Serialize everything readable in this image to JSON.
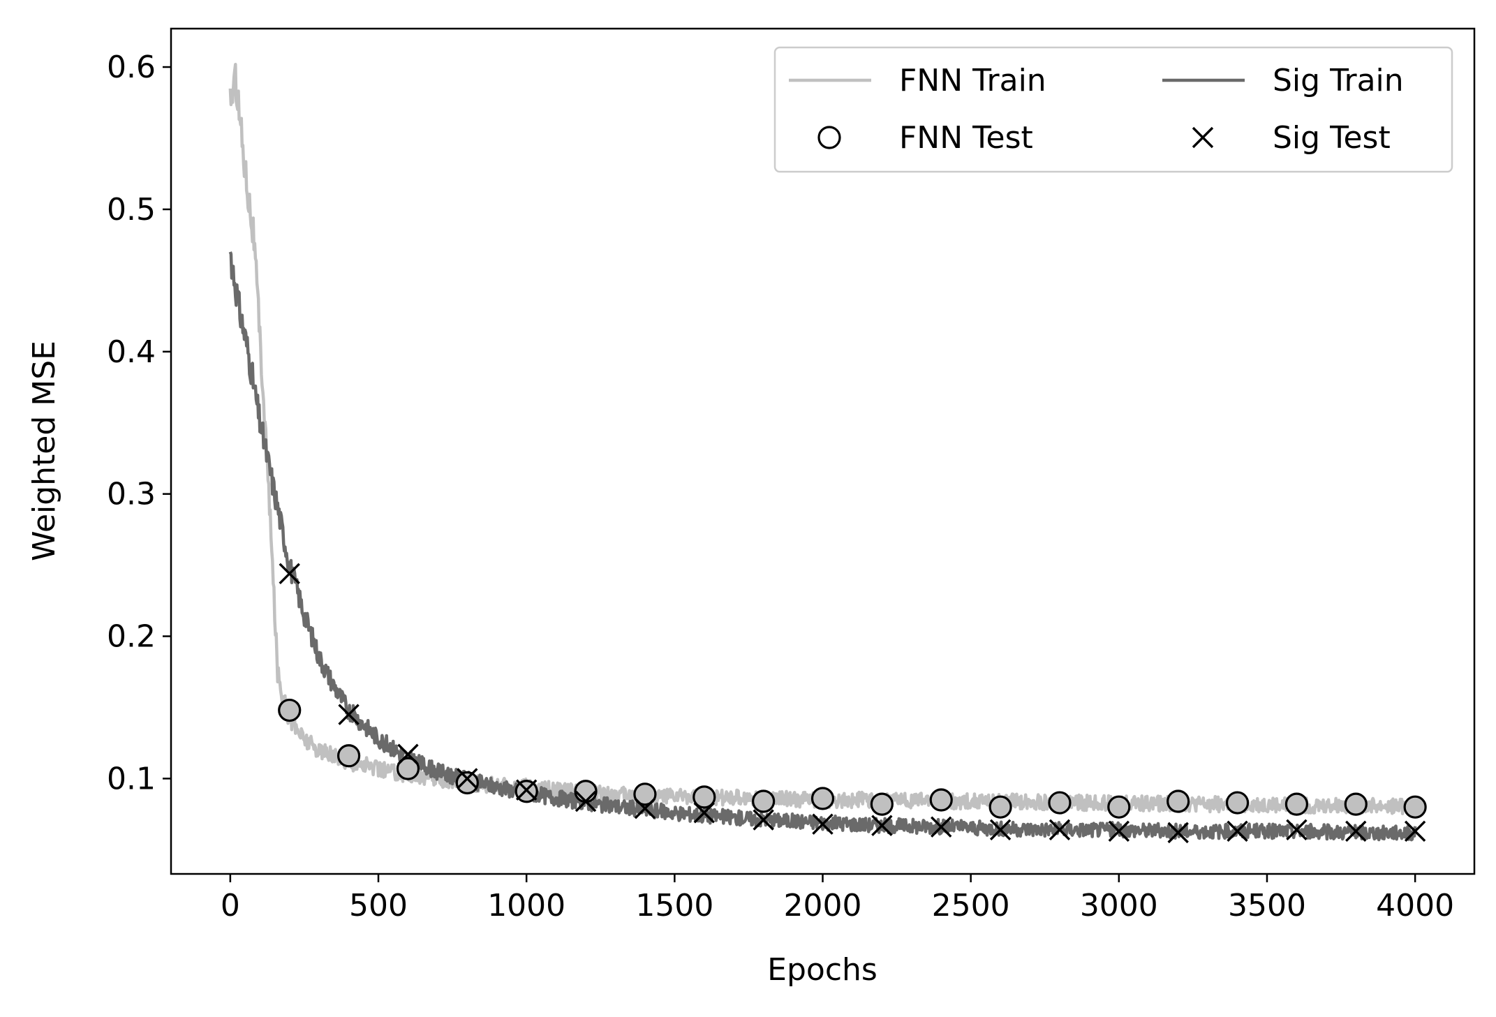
{
  "chart_data": {
    "type": "line",
    "title": "",
    "xlabel": "Epochs",
    "ylabel": "Weighted MSE",
    "xlim": [
      -200,
      4200
    ],
    "ylim": [
      0.033,
      0.627
    ],
    "xticks": [
      0,
      500,
      1000,
      1500,
      2000,
      2500,
      3000,
      3500,
      4000
    ],
    "xtick_labels": [
      "0",
      "500",
      "1000",
      "1500",
      "2000",
      "2500",
      "3000",
      "3500",
      "4000"
    ],
    "yticks": [
      0.1,
      0.2,
      0.3,
      0.4,
      0.5,
      0.6
    ],
    "ytick_labels": [
      "0.1",
      "0.2",
      "0.3",
      "0.4",
      "0.5",
      "0.6"
    ],
    "grid": false,
    "legend_position": "top-right",
    "legend_columns": 2,
    "series": [
      {
        "name": "FNN Train",
        "kind": "line",
        "color": "#c0c0c0",
        "x": [
          0,
          20,
          50,
          80,
          100,
          120,
          140,
          160,
          180,
          200,
          250,
          300,
          400,
          500,
          600,
          700,
          800,
          900,
          1000,
          1200,
          1400,
          1600,
          1800,
          2000,
          2200,
          2400,
          2600,
          2800,
          3000,
          3200,
          3400,
          3600,
          3800,
          4000
        ],
        "y": [
          0.58,
          0.59,
          0.53,
          0.48,
          0.41,
          0.34,
          0.26,
          0.175,
          0.155,
          0.142,
          0.128,
          0.12,
          0.112,
          0.107,
          0.103,
          0.1,
          0.097,
          0.095,
          0.094,
          0.09,
          0.088,
          0.087,
          0.086,
          0.085,
          0.085,
          0.084,
          0.084,
          0.083,
          0.083,
          0.082,
          0.082,
          0.081,
          0.081,
          0.08
        ]
      },
      {
        "name": "Sig Train",
        "kind": "line",
        "color": "#6a6a6a",
        "x": [
          0,
          30,
          60,
          100,
          150,
          200,
          250,
          300,
          350,
          400,
          500,
          600,
          700,
          800,
          900,
          1000,
          1200,
          1400,
          1600,
          1800,
          2000,
          2200,
          2400,
          2600,
          2800,
          3000,
          3200,
          3400,
          3600,
          3800,
          4000
        ],
        "y": [
          0.47,
          0.43,
          0.4,
          0.35,
          0.3,
          0.25,
          0.215,
          0.185,
          0.165,
          0.148,
          0.128,
          0.114,
          0.105,
          0.099,
          0.094,
          0.09,
          0.083,
          0.078,
          0.074,
          0.071,
          0.069,
          0.067,
          0.066,
          0.065,
          0.064,
          0.064,
          0.063,
          0.063,
          0.063,
          0.062,
          0.062
        ]
      },
      {
        "name": "FNN Test",
        "kind": "marker-circle",
        "color": "#c0c0c0",
        "x": [
          200,
          400,
          600,
          800,
          1000,
          1200,
          1400,
          1600,
          1800,
          2000,
          2200,
          2400,
          2600,
          2800,
          3000,
          3200,
          3400,
          3600,
          3800,
          4000
        ],
        "y": [
          0.148,
          0.116,
          0.107,
          0.097,
          0.091,
          0.091,
          0.089,
          0.087,
          0.084,
          0.086,
          0.082,
          0.085,
          0.08,
          0.083,
          0.08,
          0.084,
          0.083,
          0.082,
          0.082,
          0.08
        ]
      },
      {
        "name": "Sig Test",
        "kind": "marker-x",
        "color": "#000000",
        "x": [
          200,
          400,
          600,
          800,
          1000,
          1200,
          1400,
          1600,
          1800,
          2000,
          2200,
          2400,
          2600,
          2800,
          3000,
          3200,
          3400,
          3600,
          3800,
          4000
        ],
        "y": [
          0.244,
          0.145,
          0.117,
          0.1,
          0.092,
          0.084,
          0.079,
          0.076,
          0.071,
          0.068,
          0.067,
          0.066,
          0.064,
          0.064,
          0.063,
          0.062,
          0.063,
          0.064,
          0.063,
          0.063
        ]
      }
    ]
  }
}
